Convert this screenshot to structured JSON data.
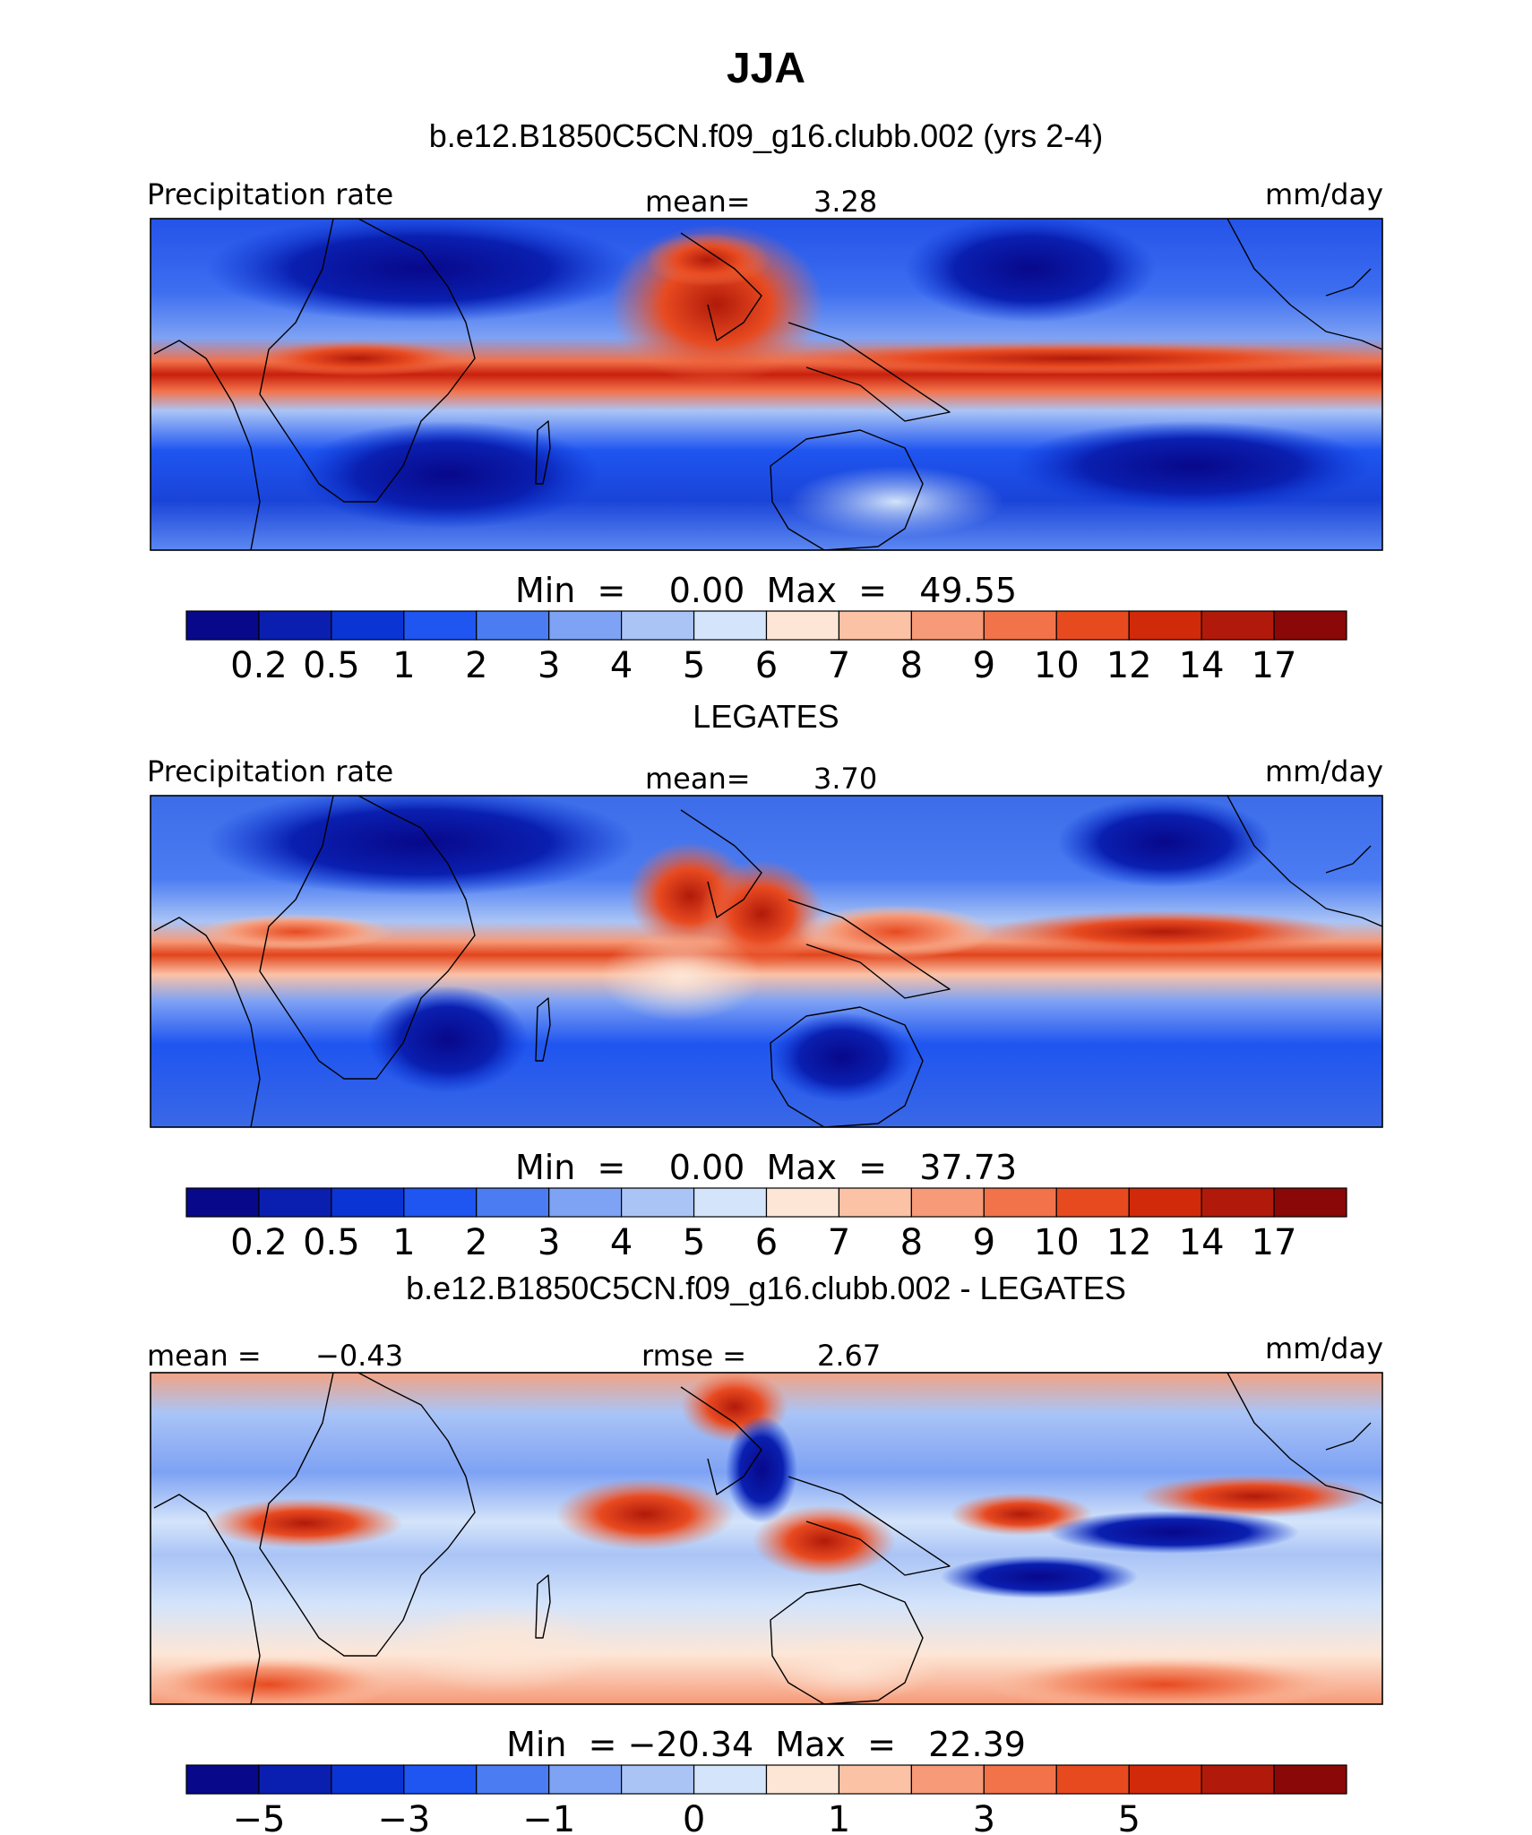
{
  "figure": {
    "title": "JJA"
  },
  "chart_data": [
    {
      "type": "heatmap",
      "subtitle": "b.e12.B1850C5CN.f09_g16.clubb.002 (yrs 2-4)",
      "left_label": "Precipitation rate",
      "center_label": "mean=",
      "center_value": "3.28",
      "right_label": "mm/day",
      "stats_text": "Min  =    0.00  Max  =   49.55",
      "min": 0.0,
      "max": 49.55,
      "mean": 3.28,
      "levels": [
        "0.2",
        "0.5",
        "1",
        "2",
        "3",
        "4",
        "5",
        "6",
        "7",
        "8",
        "9",
        "10",
        "12",
        "14",
        "17"
      ],
      "colors": [
        "#08088a",
        "#0a1fb0",
        "#0a35d4",
        "#1f55f0",
        "#4b7cf2",
        "#7ea2f4",
        "#aac4f6",
        "#d4e4fa",
        "#fde6d6",
        "#fbc2a6",
        "#f69a78",
        "#f2724a",
        "#e84a20",
        "#d12a0a",
        "#b11a0a",
        "#8a0808"
      ]
    },
    {
      "type": "heatmap",
      "subtitle": "LEGATES",
      "left_label": "Precipitation rate",
      "center_label": "mean=",
      "center_value": "3.70",
      "right_label": "mm/day",
      "stats_text": "Min  =    0.00  Max  =   37.73",
      "min": 0.0,
      "max": 37.73,
      "mean": 3.7,
      "levels": [
        "0.2",
        "0.5",
        "1",
        "2",
        "3",
        "4",
        "5",
        "6",
        "7",
        "8",
        "9",
        "10",
        "12",
        "14",
        "17"
      ],
      "colors": [
        "#08088a",
        "#0a1fb0",
        "#0a35d4",
        "#1f55f0",
        "#4b7cf2",
        "#7ea2f4",
        "#aac4f6",
        "#d4e4fa",
        "#fde6d6",
        "#fbc2a6",
        "#f69a78",
        "#f2724a",
        "#e84a20",
        "#d12a0a",
        "#b11a0a",
        "#8a0808"
      ]
    },
    {
      "type": "heatmap",
      "subtitle": "b.e12.B1850C5CN.f09_g16.clubb.002 - LEGATES",
      "left_label": "mean =",
      "left_value": "−0.43",
      "center_label": "rmse =",
      "center_value": "2.67",
      "right_label": "mm/day",
      "stats_text": "Min  = −20.34  Max  =   22.39",
      "min": -20.34,
      "max": 22.39,
      "mean": -0.43,
      "rmse": 2.67,
      "levels": [
        "−5",
        "",
        "−3",
        "",
        "−1",
        "",
        "0",
        "",
        "1",
        "",
        "3",
        "",
        "5",
        ""
      ],
      "colors": [
        "#08088a",
        "#0a1fb0",
        "#0a35d4",
        "#1f55f0",
        "#4b7cf2",
        "#7ea2f4",
        "#aac4f6",
        "#d4e4fa",
        "#fde6d6",
        "#fbc2a6",
        "#f69a78",
        "#f2724a",
        "#e84a20",
        "#d12a0a",
        "#b11a0a",
        "#8a0808"
      ]
    }
  ]
}
